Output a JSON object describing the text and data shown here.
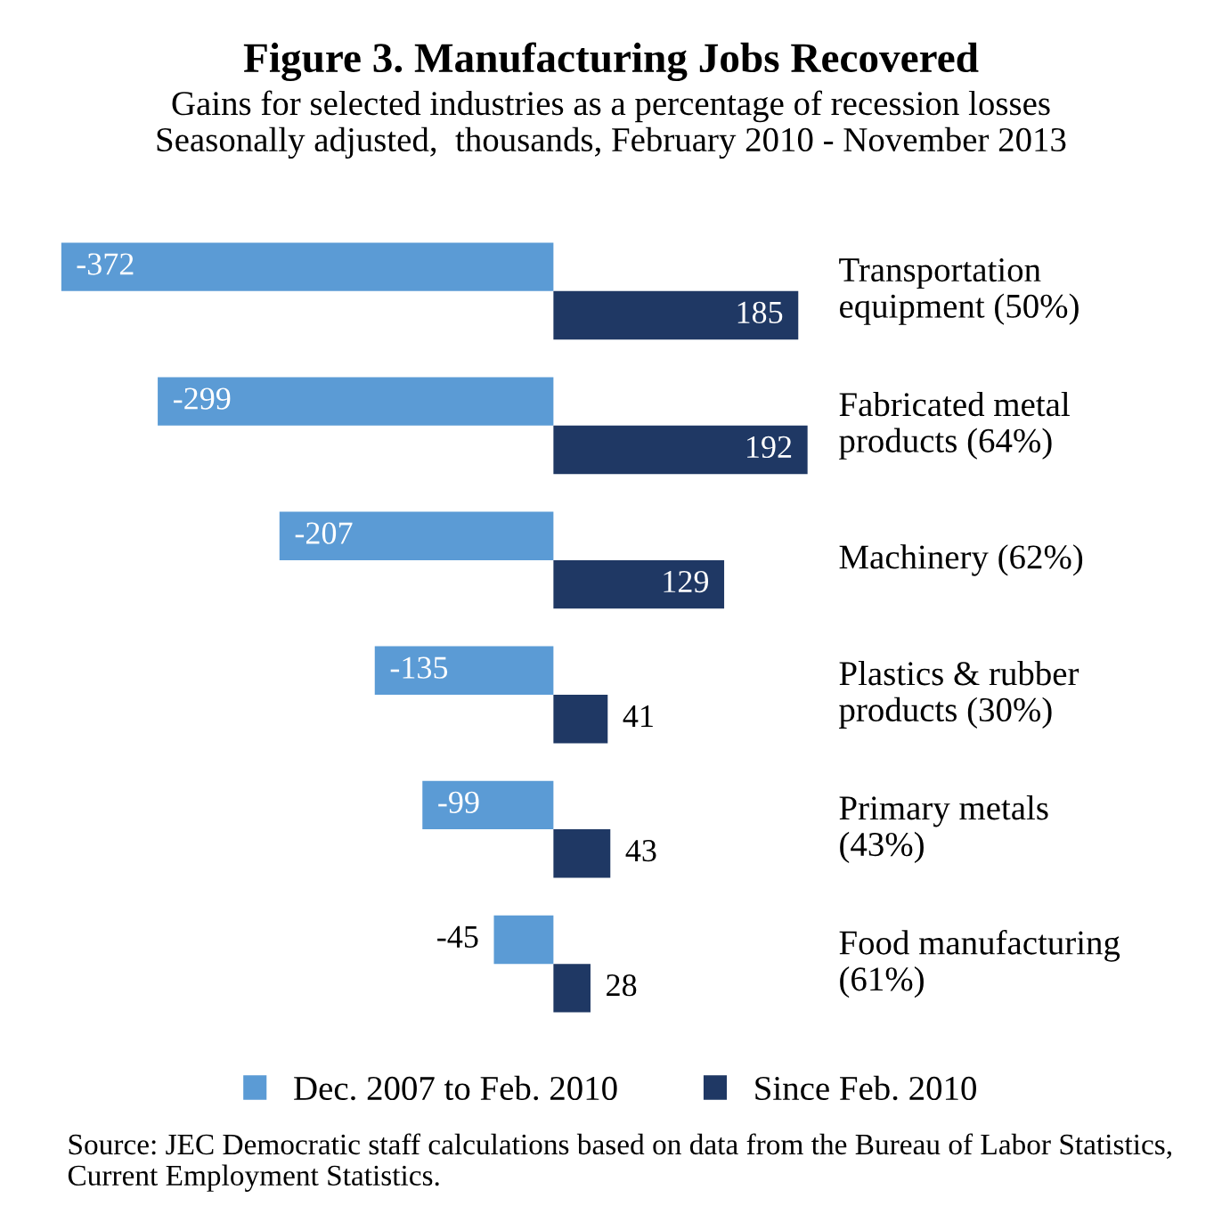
{
  "chart_data": {
    "type": "bar",
    "orientation": "horizontal",
    "title": "Figure 3. Manufacturing Jobs Recovered",
    "subtitle": "Gains for selected industries as a percentage of recession losses\nSeasonally adjusted,  thousands, February 2010 - November 2013",
    "categories": [
      "Transportation\nequipment (50%)",
      "Fabricated metal\nproducts (64%)",
      "Machinery (62%)",
      "Plastics & rubber\nproducts (30%)",
      "Primary metals\n(43%)",
      "Food manufacturing\n(61%)"
    ],
    "series": [
      {
        "name": "Dec. 2007 to Feb. 2010",
        "color": "#5b9bd5",
        "values": [
          -372,
          -299,
          -207,
          -135,
          -99,
          -45
        ]
      },
      {
        "name": "Since Feb. 2010",
        "color": "#1f3864",
        "values": [
          185,
          192,
          129,
          41,
          43,
          28
        ]
      }
    ],
    "data_labels": true,
    "legend": "bottom",
    "grid": false,
    "annotations": [
      "Source: JEC Democratic staff calculations based on data from the Bureau of Labor Statistics, Current Employment Statistics."
    ]
  }
}
